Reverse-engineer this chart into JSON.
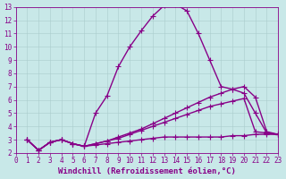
{
  "xlabel": "Windchill (Refroidissement éolien,°C)",
  "xlim": [
    0,
    23
  ],
  "ylim": [
    2,
    13
  ],
  "yticks": [
    2,
    3,
    4,
    5,
    6,
    7,
    8,
    9,
    10,
    11,
    12,
    13
  ],
  "xticks": [
    0,
    1,
    2,
    3,
    4,
    5,
    6,
    7,
    8,
    9,
    10,
    11,
    12,
    13,
    14,
    15,
    16,
    17,
    18,
    19,
    20,
    21,
    22,
    23
  ],
  "background_color": "#c8e8e8",
  "line_color": "#880088",
  "grid_color": "#aacccc",
  "lines": [
    {
      "x": [
        1,
        2,
        3,
        4,
        5,
        6,
        7,
        8,
        9,
        10,
        11,
        12,
        13,
        14,
        15,
        16,
        17,
        18,
        19,
        20,
        21,
        22,
        23
      ],
      "y": [
        3,
        2.2,
        2.8,
        3.0,
        2.7,
        2.5,
        5.0,
        6.3,
        8.5,
        10.0,
        11.2,
        12.3,
        13.1,
        13.2,
        12.7,
        11.0,
        9.0,
        7.0,
        6.8,
        6.5,
        5.0,
        3.5,
        3.4
      ]
    },
    {
      "x": [
        1,
        2,
        3,
        4,
        5,
        6,
        7,
        8,
        9,
        10,
        11,
        12,
        13,
        14,
        15,
        16,
        17,
        18,
        19,
        20,
        21,
        22,
        23
      ],
      "y": [
        3,
        2.2,
        2.8,
        3.0,
        2.7,
        2.5,
        2.7,
        2.9,
        3.2,
        3.5,
        3.8,
        4.2,
        4.6,
        5.0,
        5.4,
        5.8,
        6.2,
        6.5,
        6.8,
        7.0,
        6.2,
        3.6,
        3.4
      ]
    },
    {
      "x": [
        1,
        2,
        3,
        4,
        5,
        6,
        7,
        8,
        9,
        10,
        11,
        12,
        13,
        14,
        15,
        16,
        17,
        18,
        19,
        20,
        21,
        22,
        23
      ],
      "y": [
        3,
        2.2,
        2.8,
        3.0,
        2.7,
        2.5,
        2.7,
        2.9,
        3.1,
        3.4,
        3.7,
        4.0,
        4.3,
        4.6,
        4.9,
        5.2,
        5.5,
        5.7,
        5.9,
        6.1,
        3.6,
        3.5,
        3.4
      ]
    },
    {
      "x": [
        1,
        2,
        3,
        4,
        5,
        6,
        7,
        8,
        9,
        10,
        11,
        12,
        13,
        14,
        15,
        16,
        17,
        18,
        19,
        20,
        21,
        22,
        23
      ],
      "y": [
        3,
        2.2,
        2.8,
        3.0,
        2.7,
        2.5,
        2.6,
        2.7,
        2.8,
        2.9,
        3.0,
        3.1,
        3.2,
        3.2,
        3.2,
        3.2,
        3.2,
        3.2,
        3.3,
        3.3,
        3.4,
        3.4,
        3.4
      ]
    }
  ],
  "marker": "+",
  "markersize": 4,
  "linewidth": 1.0,
  "tick_fontsize": 5.5,
  "label_fontsize": 6.5
}
